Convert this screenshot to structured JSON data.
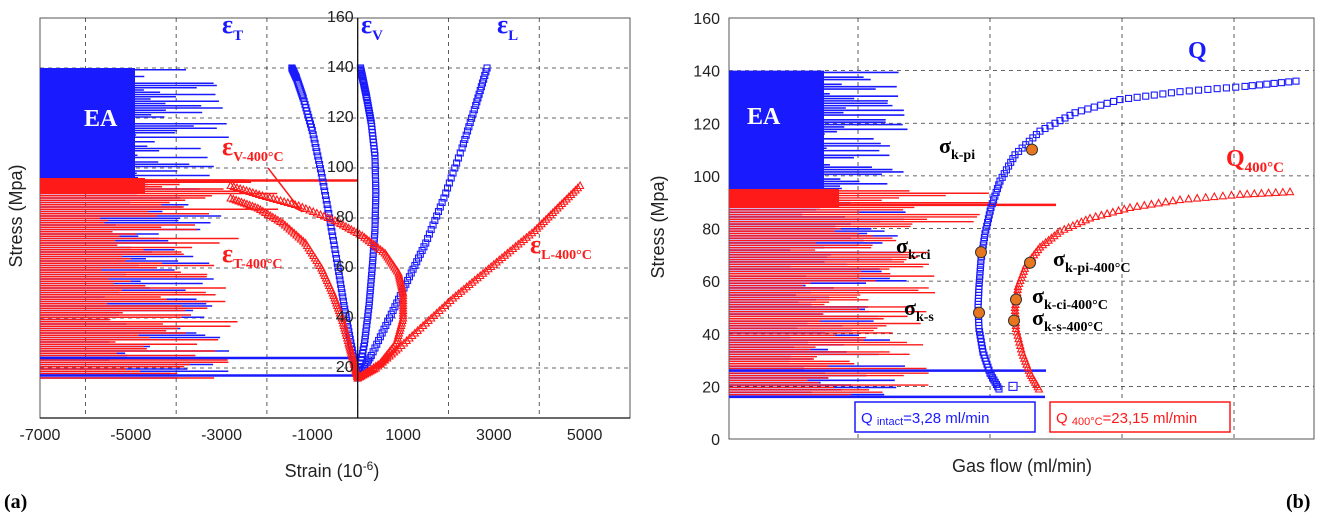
{
  "chart_data": [
    {
      "type": "scatter",
      "panel_label": "(a)",
      "xlabel": "Strain (10",
      "xlabel_sup": "-6",
      "xlabel_end": ")",
      "ylabel": "Stress (Mpa)",
      "xlim": [
        -7000,
        6000
      ],
      "ylim": [
        0,
        160
      ],
      "x_ticks": [
        -7000,
        -5000,
        -3000,
        -1000,
        1000,
        3000,
        5000
      ],
      "y_ticks": [
        20,
        40,
        60,
        80,
        100,
        120,
        140,
        160
      ],
      "grid": true,
      "colors": {
        "intact": "#1a1aff",
        "heated": "#ff1a1a"
      },
      "ea_label": "EA",
      "series": [
        {
          "name": "εL",
          "color": "#1a1aff",
          "marker": "square",
          "points": [
            [
              0,
              16
            ],
            [
              300,
              25
            ],
            [
              700,
              40
            ],
            [
              1100,
              55
            ],
            [
              1500,
              70
            ],
            [
              1900,
              88
            ],
            [
              2300,
              108
            ],
            [
              2600,
              125
            ],
            [
              2850,
              140
            ]
          ]
        },
        {
          "name": "εV",
          "color": "#1a1aff",
          "marker": "square",
          "points": [
            [
              0,
              16
            ],
            [
              150,
              30
            ],
            [
              250,
              45
            ],
            [
              320,
              60
            ],
            [
              380,
              75
            ],
            [
              400,
              90
            ],
            [
              380,
              105
            ],
            [
              300,
              118
            ],
            [
              200,
              128
            ],
            [
              120,
              135
            ],
            [
              60,
              140
            ]
          ]
        },
        {
          "name": "εT",
          "color": "#1a1aff",
          "marker": "square",
          "points": [
            [
              0,
              16
            ],
            [
              -150,
              30
            ],
            [
              -300,
              45
            ],
            [
              -450,
              62
            ],
            [
              -620,
              80
            ],
            [
              -800,
              98
            ],
            [
              -1000,
              115
            ],
            [
              -1200,
              128
            ],
            [
              -1350,
              136
            ],
            [
              -1450,
              140
            ]
          ]
        },
        {
          "name": "εL-400°C",
          "color": "#ff1a1a",
          "marker": "triangle",
          "points": [
            [
              0,
              16
            ],
            [
              400,
              20
            ],
            [
              900,
              28
            ],
            [
              1500,
              38
            ],
            [
              2100,
              48
            ],
            [
              2700,
              57
            ],
            [
              3300,
              66
            ],
            [
              3900,
              75
            ],
            [
              4400,
              84
            ],
            [
              4900,
              93
            ]
          ]
        },
        {
          "name": "εV-400°C",
          "color": "#ff1a1a",
          "marker": "triangle",
          "points": [
            [
              0,
              16
            ],
            [
              500,
              22
            ],
            [
              850,
              30
            ],
            [
              1000,
              40
            ],
            [
              1000,
              50
            ],
            [
              900,
              58
            ],
            [
              600,
              66
            ],
            [
              100,
              73
            ],
            [
              -500,
              79
            ],
            [
              -1300,
              85
            ],
            [
              -2100,
              89
            ],
            [
              -2800,
              93
            ]
          ]
        },
        {
          "name": "εT-400°C",
          "color": "#ff1a1a",
          "marker": "triangle",
          "points": [
            [
              0,
              16
            ],
            [
              -80,
              22
            ],
            [
              -200,
              30
            ],
            [
              -350,
              40
            ],
            [
              -550,
              50
            ],
            [
              -800,
              60
            ],
            [
              -1150,
              70
            ],
            [
              -1650,
              78
            ],
            [
              -2200,
              84
            ],
            [
              -2800,
              88
            ]
          ]
        }
      ],
      "annotations": [
        {
          "base": "ε",
          "sub": "T",
          "color": "#1a1aff",
          "x": -2300,
          "y": 147
        },
        {
          "base": "ε",
          "sub": "V",
          "color": "#1a1aff",
          "x": 300,
          "y": 147
        },
        {
          "base": "ε",
          "sub": "L",
          "color": "#1a1aff",
          "x": 3100,
          "y": 147
        },
        {
          "base": "ε",
          "sub": "V-400°C",
          "color": "#ff1a1a",
          "x": -2700,
          "y": 104
        },
        {
          "base": "ε",
          "sub": "T-400°C",
          "color": "#ff1a1a",
          "x": -2700,
          "y": 68
        },
        {
          "base": "ε",
          "sub": "L-400°C",
          "color": "#ff1a1a",
          "x": 4000,
          "y": 70
        }
      ]
    },
    {
      "type": "scatter",
      "panel_label": "(b)",
      "xlabel": "Gas flow (ml/min)",
      "ylabel": "Stress (Mpa)",
      "ylim": [
        0,
        160
      ],
      "y_ticks": [
        0,
        20,
        40,
        60,
        80,
        100,
        120,
        140,
        160
      ],
      "grid": true,
      "ea_label": "EA",
      "series": [
        {
          "name": "Q",
          "color": "#1a1aff",
          "marker": "square"
        },
        {
          "name": "Q400°C",
          "color": "#ff1a1a",
          "marker": "triangle"
        }
      ],
      "markers": [
        {
          "label": "σk-pi",
          "y": 110
        },
        {
          "label": "σk-ci",
          "y": 71
        },
        {
          "label": "σk-s",
          "y": 48
        },
        {
          "label": "σk-pi-400°C",
          "y": 67
        },
        {
          "label": "σk-ci-400°C",
          "y": 53
        },
        {
          "label": "σk-s-400°C",
          "y": 45
        }
      ],
      "legend_boxes": [
        {
          "prefix": "Q",
          "sub": "intact",
          "value": "=3,28 ml/min",
          "color": "#1a1aff"
        },
        {
          "prefix": "Q",
          "sub": "400°C",
          "value": "=23,15 ml/min",
          "color": "#ff1a1a"
        }
      ]
    }
  ],
  "labels": {
    "a_eps_T": "ε",
    "a_eps_T_sub": "T",
    "a_eps_V": "ε",
    "a_eps_V_sub": "V",
    "a_eps_L": "ε",
    "a_eps_L_sub": "L",
    "a_eps_V4": "ε",
    "a_eps_V4_sub": "V-400°C",
    "a_eps_T4": "ε",
    "a_eps_T4_sub": "T-400°C",
    "a_eps_L4": "ε",
    "a_eps_L4_sub": "L-400°C",
    "b_Q": "Q",
    "b_Q4": "Q",
    "b_Q4_sub": "400°C",
    "b_s_kpi": "σ",
    "b_s_kpi_sub": "k-pi",
    "b_s_kci": "σ",
    "b_s_kci_sub": "k-ci",
    "b_s_ks": "σ",
    "b_s_ks_sub": "k-s",
    "b_s_kpi4": "σ",
    "b_s_kpi4_sub": "k-pi-400°C",
    "b_s_kci4": "σ",
    "b_s_kci4_sub": "k-ci-400°C",
    "b_s_ks4": "σ",
    "b_s_ks4_sub": "k-s-400°C",
    "leg1_prefix": "Q ",
    "leg1_sub": "intact",
    "leg1_val": "=3,28 ml/min",
    "leg2_prefix": "Q ",
    "leg2_sub": "400°C",
    "leg2_val": "=23,15 ml/min"
  }
}
